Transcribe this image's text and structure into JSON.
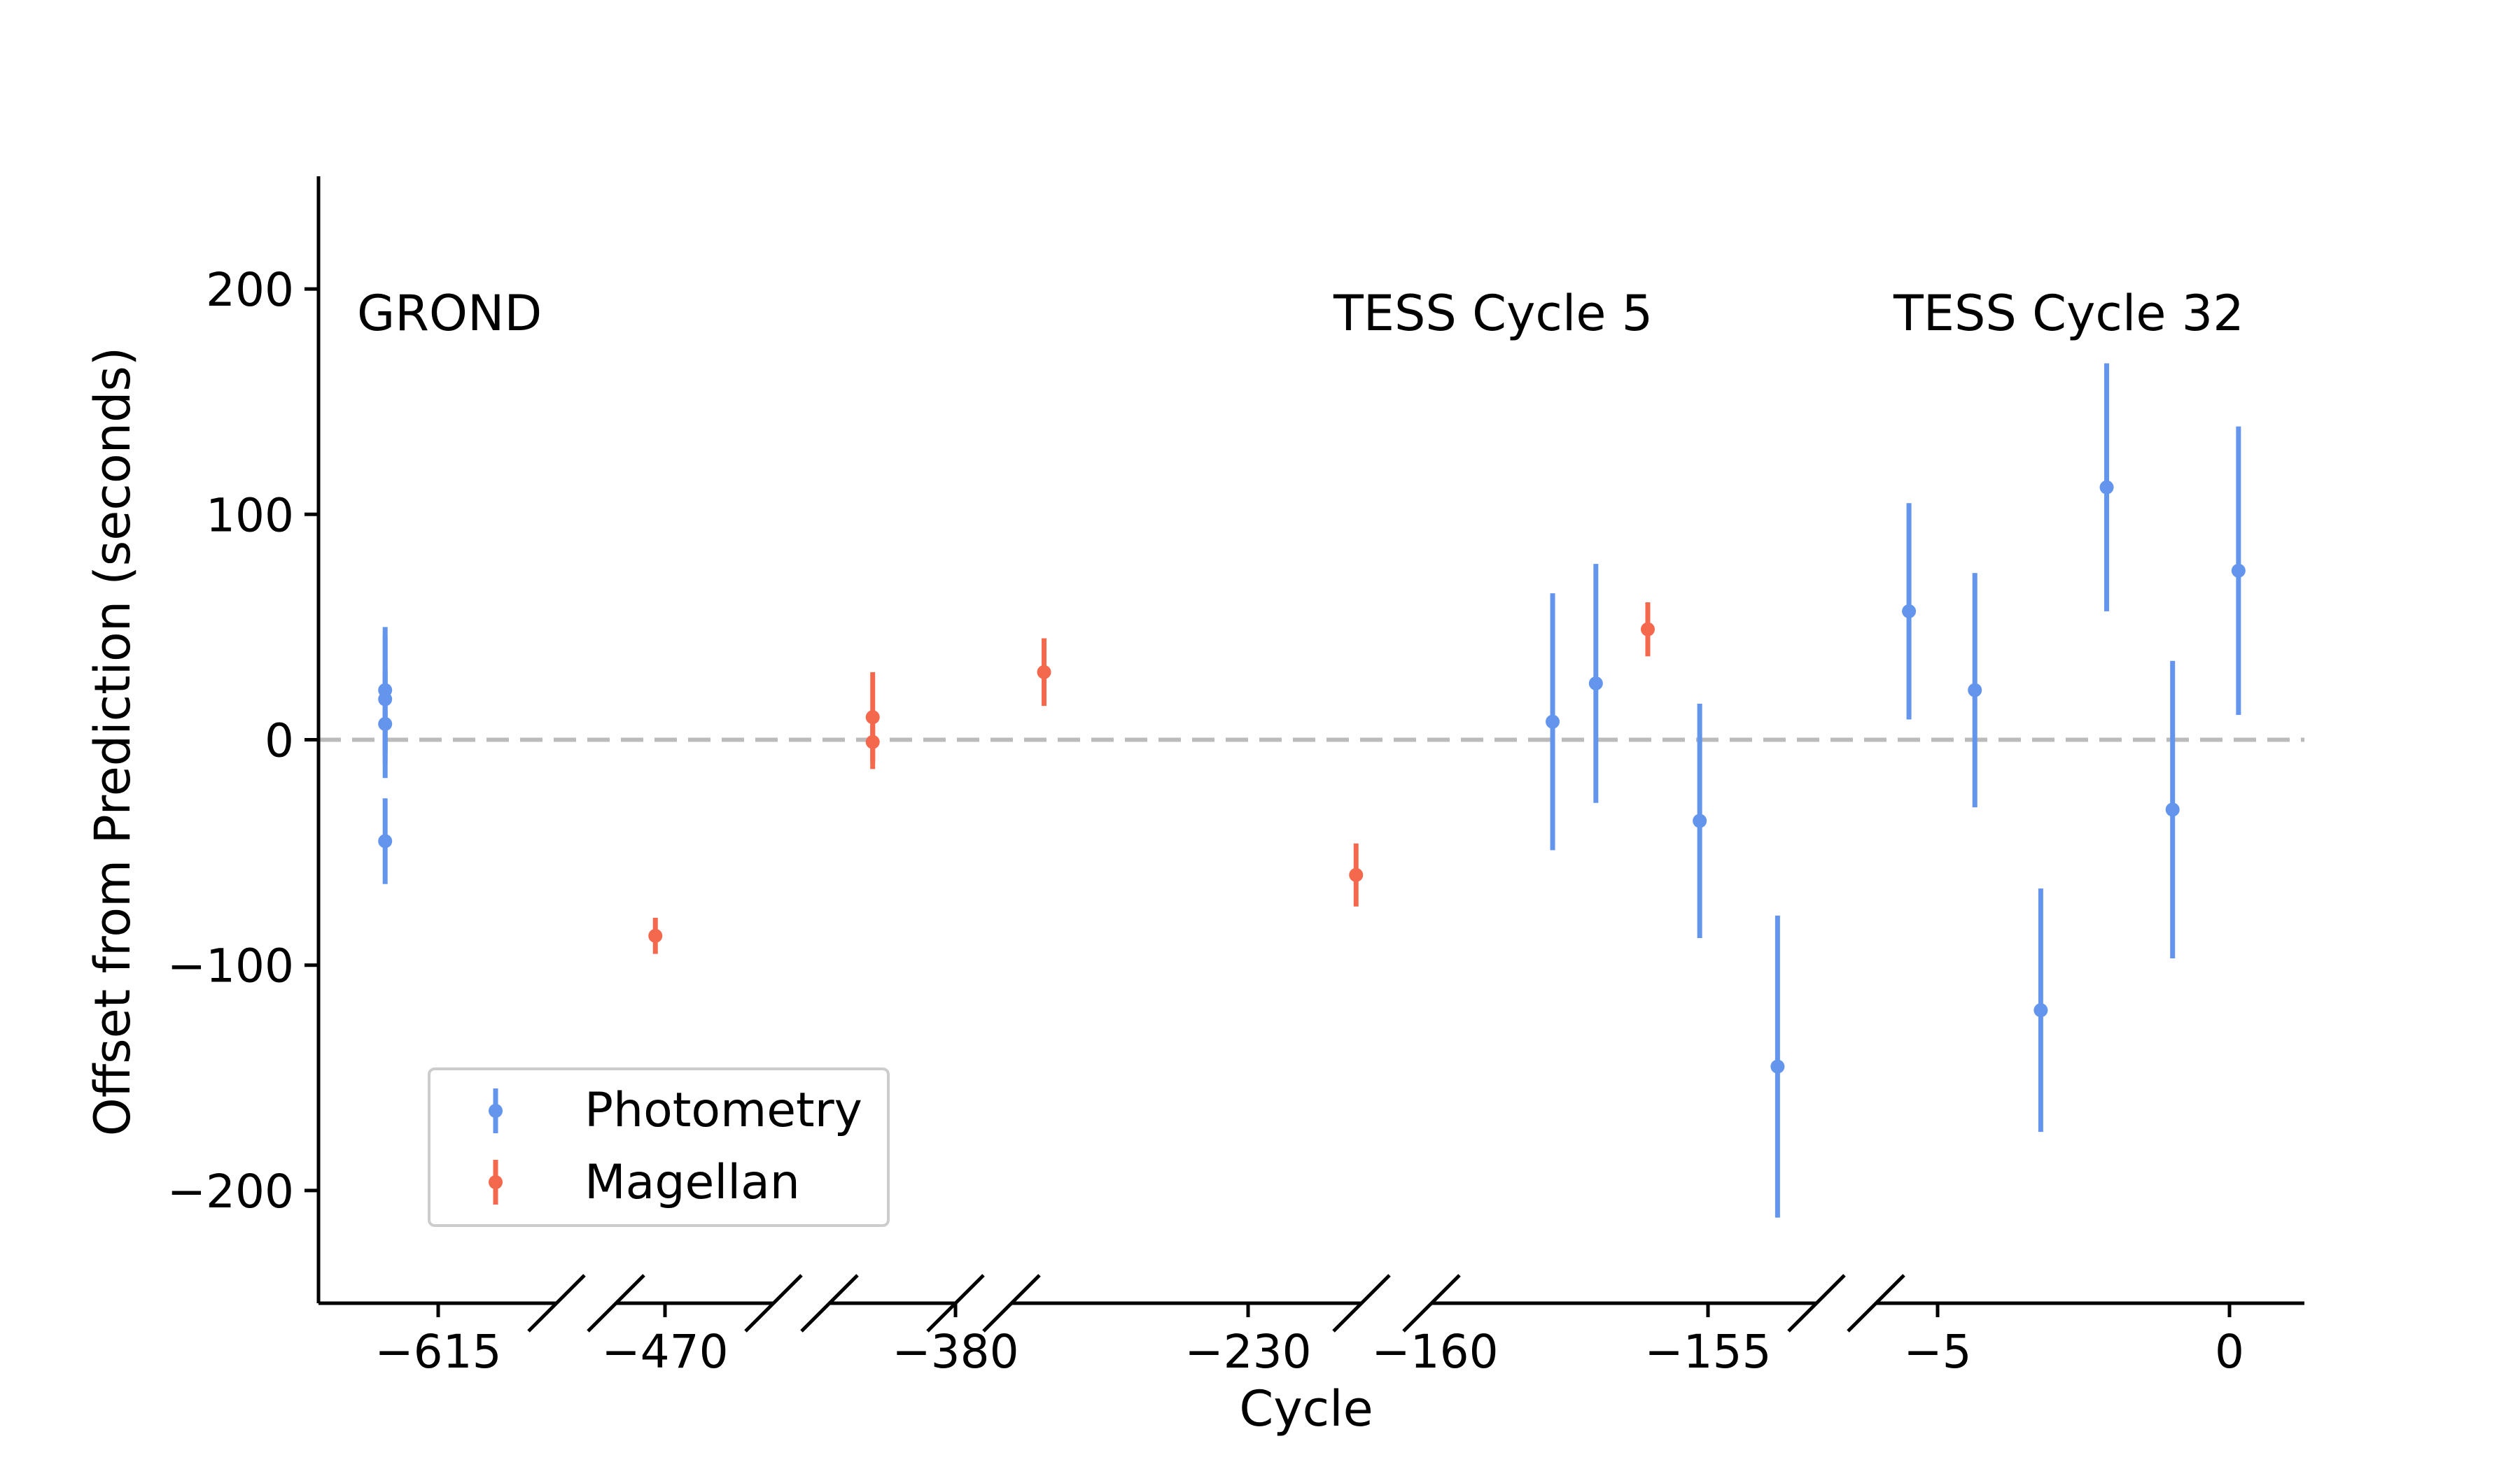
{
  "chart_data": {
    "type": "scatter",
    "title": "",
    "xlabel": "Cycle",
    "ylabel": "Offset from Prediction (seconds)",
    "ylim": [
      -250,
      250
    ],
    "yticks": [
      -200,
      -100,
      0,
      100,
      200
    ],
    "ytick_labels": [
      "−200",
      "−100",
      "0",
      "100",
      "200"
    ],
    "reference_line": {
      "y": 0,
      "style": "dashed",
      "color": "#bbbbbb"
    },
    "xtick_labels": [
      "−615",
      "−470",
      "−380",
      "−230",
      "−160",
      "−155",
      "−5",
      "0"
    ],
    "annotations": [
      "GROND",
      "TESS Cycle 5",
      "TESS Cycle 32"
    ],
    "legend": {
      "location": "lower-left",
      "entries": [
        {
          "label": "Photometry",
          "series": "photometry"
        },
        {
          "label": "Magellan",
          "series": "magellan"
        }
      ]
    },
    "series": [
      {
        "name": "Photometry",
        "key": "photometry",
        "color": "#6495ed",
        "points": [
          {
            "x": -615,
            "y": 22,
            "err": 28
          },
          {
            "x": -615,
            "y": 18,
            "err": 28
          },
          {
            "x": -615,
            "y": 7,
            "err": 24
          },
          {
            "x": -615,
            "y": -45,
            "err": 19
          },
          {
            "x": -157.6,
            "y": 8,
            "err": 57
          },
          {
            "x": -157.1,
            "y": 25,
            "err": 53
          },
          {
            "x": -155.9,
            "y": -36,
            "err": 52
          },
          {
            "x": -155,
            "y": -145,
            "err": 67
          },
          {
            "x": -5,
            "y": 57,
            "err": 48
          },
          {
            "x": -4,
            "y": 22,
            "err": 52
          },
          {
            "x": -3,
            "y": -120,
            "err": 54
          },
          {
            "x": -2,
            "y": 112,
            "err": 55
          },
          {
            "x": -1,
            "y": -31,
            "err": 66
          },
          {
            "x": 0,
            "y": 75,
            "err": 64
          }
        ]
      },
      {
        "name": "Magellan",
        "key": "magellan",
        "color": "#f4694e",
        "points": [
          {
            "x": -470,
            "y": -87,
            "err": 8
          },
          {
            "x": -383,
            "y": 10,
            "err": 20
          },
          {
            "x": -383,
            "y": -1,
            "err": 12
          },
          {
            "x": -345,
            "y": 30,
            "err": 15
          },
          {
            "x": -230,
            "y": -60,
            "err": 14
          },
          {
            "x": -156.5,
            "y": 49,
            "err": 12
          }
        ]
      }
    ]
  }
}
